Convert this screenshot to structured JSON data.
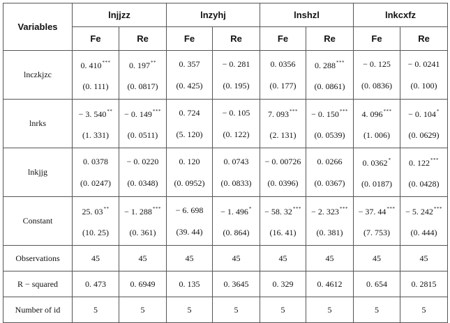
{
  "header": {
    "variables_label": "Variables",
    "groups": [
      "lnjjzz",
      "lnzyhj",
      "lnshzl",
      "lnkcxfz"
    ],
    "sub_labels": [
      "Fe",
      "Re",
      "Fe",
      "Re",
      "Fe",
      "Re",
      "Fe",
      "Re"
    ]
  },
  "rows": [
    {
      "label": "lnczkjzc",
      "cells": [
        {
          "coef": "0. 410",
          "stars": "***",
          "se": "(0. 111)"
        },
        {
          "coef": "0. 197",
          "stars": "**",
          "se": "(0. 0817)"
        },
        {
          "coef": "0. 357",
          "stars": "",
          "se": "(0. 425)"
        },
        {
          "coef": "− 0. 281",
          "stars": "",
          "se": "(0. 195)"
        },
        {
          "coef": "0. 0356",
          "stars": "",
          "se": "(0. 177)"
        },
        {
          "coef": "0. 288",
          "stars": "***",
          "se": "(0. 0861)"
        },
        {
          "coef": "− 0. 125",
          "stars": "",
          "se": "(0. 0836)"
        },
        {
          "coef": "− 0. 0241",
          "stars": "",
          "se": "(0. 100)"
        }
      ]
    },
    {
      "label": "lnrks",
      "cells": [
        {
          "coef": "− 3. 540",
          "stars": "**",
          "se": "(1. 331)"
        },
        {
          "coef": "− 0. 149",
          "stars": "***",
          "se": "(0. 0511)"
        },
        {
          "coef": "0. 724",
          "stars": "",
          "se": "(5. 120)"
        },
        {
          "coef": "− 0. 105",
          "stars": "",
          "se": "(0. 122)"
        },
        {
          "coef": "7. 093",
          "stars": "***",
          "se": "(2. 131)"
        },
        {
          "coef": "− 0. 150",
          "stars": "***",
          "se": "(0. 0539)"
        },
        {
          "coef": "4. 096",
          "stars": "***",
          "se": "(1. 006)"
        },
        {
          "coef": "− 0. 104",
          "stars": "*",
          "se": "(0. 0629)"
        }
      ]
    },
    {
      "label": "lnkjjg",
      "cells": [
        {
          "coef": "0. 0378",
          "stars": "",
          "se": "(0. 0247)"
        },
        {
          "coef": "− 0. 0220",
          "stars": "",
          "se": "(0. 0348)"
        },
        {
          "coef": "0. 120",
          "stars": "",
          "se": "(0. 0952)"
        },
        {
          "coef": "0. 0743",
          "stars": "",
          "se": "(0. 0833)"
        },
        {
          "coef": "− 0. 00726",
          "stars": "",
          "se": "(0. 0396)"
        },
        {
          "coef": "0. 0266",
          "stars": "",
          "se": "(0. 0367)"
        },
        {
          "coef": "0. 0362",
          "stars": "*",
          "se": "(0. 0187)"
        },
        {
          "coef": "0. 122",
          "stars": "***",
          "se": "(0. 0428)"
        }
      ]
    },
    {
      "label": "Constant",
      "cells": [
        {
          "coef": "25. 03",
          "stars": "**",
          "se": "(10. 25)"
        },
        {
          "coef": "− 1. 288",
          "stars": "***",
          "se": "(0. 361)"
        },
        {
          "coef": "− 6. 698",
          "stars": "",
          "se": "(39. 44)"
        },
        {
          "coef": "− 1. 496",
          "stars": "*",
          "se": "(0. 864)"
        },
        {
          "coef": "− 58. 32",
          "stars": "***",
          "se": "(16. 41)"
        },
        {
          "coef": "− 2. 323",
          "stars": "***",
          "se": "(0. 381)"
        },
        {
          "coef": "− 37. 44",
          "stars": "***",
          "se": "(7. 753)"
        },
        {
          "coef": "− 5. 242",
          "stars": "***",
          "se": "(0. 444)"
        }
      ]
    }
  ],
  "stats": [
    {
      "label": "Observations",
      "values": [
        "45",
        "45",
        "45",
        "45",
        "45",
        "45",
        "45",
        "45"
      ]
    },
    {
      "label": "R − squared",
      "values": [
        "0. 473",
        "0. 6949",
        "0. 135",
        "0. 3645",
        "0. 329",
        "0. 4612",
        "0. 654",
        "0. 2815"
      ]
    },
    {
      "label": "Number of id",
      "values": [
        "5",
        "5",
        "5",
        "5",
        "5",
        "5",
        "5",
        "5"
      ]
    }
  ]
}
